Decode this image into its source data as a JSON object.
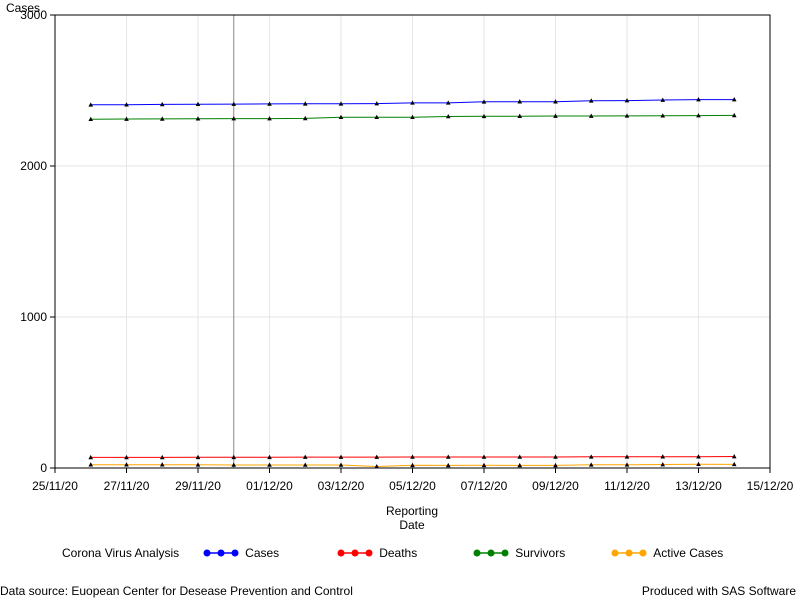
{
  "chart_data": {
    "type": "line",
    "ylabel": "Cases",
    "xlabel": [
      "Reporting",
      "Date"
    ],
    "ylim": [
      0,
      3000
    ],
    "yticks": [
      0,
      1000,
      2000,
      3000
    ],
    "xlim_dates": [
      "2020-11-25",
      "2020-12-15"
    ],
    "xticks": [
      "25/11/20",
      "27/11/20",
      "29/11/20",
      "01/12/20",
      "03/12/20",
      "05/12/20",
      "07/12/20",
      "09/12/20",
      "11/12/20",
      "13/12/20",
      "15/12/20"
    ],
    "x": [
      "2020-11-26",
      "2020-11-27",
      "2020-11-28",
      "2020-11-29",
      "2020-11-30",
      "2020-12-01",
      "2020-12-02",
      "2020-12-03",
      "2020-12-04",
      "2020-12-05",
      "2020-12-06",
      "2020-12-07",
      "2020-12-08",
      "2020-12-09",
      "2020-12-10",
      "2020-12-11",
      "2020-12-12",
      "2020-12-13",
      "2020-12-14"
    ],
    "reference_line_date": "2020-11-30",
    "grid": true,
    "series": [
      {
        "name": "Cases",
        "color": "#0000ff",
        "values": [
          2405,
          2406,
          2408,
          2409,
          2410,
          2411,
          2412,
          2412,
          2413,
          2418,
          2418,
          2425,
          2426,
          2426,
          2432,
          2433,
          2437,
          2440,
          2440
        ]
      },
      {
        "name": "Deaths",
        "color": "#ff0000",
        "values": [
          70,
          70,
          70,
          71,
          71,
          71,
          72,
          72,
          72,
          73,
          73,
          73,
          73,
          73,
          74,
          74,
          75,
          75,
          76
        ]
      },
      {
        "name": "Survivors",
        "color": "#008000",
        "values": [
          2310,
          2311,
          2312,
          2313,
          2314,
          2314,
          2315,
          2323,
          2323,
          2323,
          2328,
          2329,
          2330,
          2331,
          2331,
          2332,
          2333,
          2334,
          2335
        ]
      },
      {
        "name": "Active Cases",
        "color": "#ffa500",
        "values": [
          22,
          22,
          22,
          21,
          20,
          20,
          20,
          20,
          10,
          18,
          17,
          18,
          17,
          17,
          21,
          21,
          23,
          25,
          24
        ]
      }
    ]
  },
  "legend": {
    "title": "Corona Virus Analysis",
    "items": [
      "Cases",
      "Deaths",
      "Survivors",
      "Active Cases"
    ]
  },
  "footer": {
    "left": "Data source: Euopean Center for Desease Prevention and Control",
    "right": "Produced with SAS Software"
  }
}
